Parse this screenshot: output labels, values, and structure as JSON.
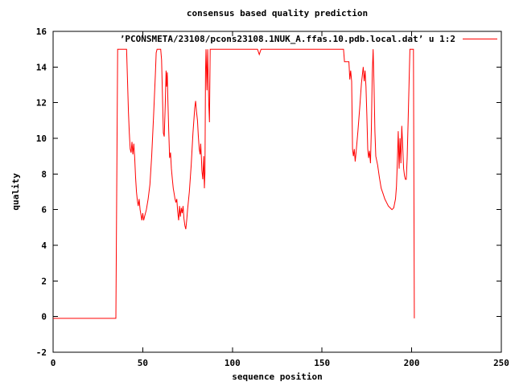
{
  "colors": {
    "background": "#ffffff",
    "axis": "#000000",
    "text": "#000000",
    "line": "#ff0000"
  },
  "chart_data": {
    "type": "line",
    "title": "consensus based quality prediction",
    "xlabel": "sequence position",
    "ylabel": "quality",
    "xlim": [
      0,
      250
    ],
    "ylim": [
      -2,
      16
    ],
    "x_ticks": [
      0,
      50,
      100,
      150,
      200,
      250
    ],
    "y_ticks": [
      -2,
      0,
      2,
      4,
      6,
      8,
      10,
      12,
      14,
      16
    ],
    "grid": false,
    "legend_position": "top-inside-right",
    "series": [
      {
        "name": "’PCONSMETA/23108/pcons23108.1NUK_A.ffas.10.pdb.local.dat’ u 1:2",
        "color": "#ff0000",
        "points": [
          [
            0,
            -0.1
          ],
          [
            35,
            -0.1
          ],
          [
            36,
            15
          ],
          [
            41,
            15
          ],
          [
            41.5,
            13.2
          ],
          [
            42,
            11.5
          ],
          [
            42.5,
            10.3
          ],
          [
            43,
            9.4
          ],
          [
            43.5,
            9.2
          ],
          [
            44,
            9.8
          ],
          [
            44.5,
            9.1
          ],
          [
            45,
            9.7
          ],
          [
            45.5,
            8.9
          ],
          [
            46,
            7.8
          ],
          [
            46.5,
            7.0
          ],
          [
            47,
            6.5
          ],
          [
            47.5,
            6.2
          ],
          [
            48,
            6.6
          ],
          [
            48.5,
            6.0
          ],
          [
            49,
            5.7
          ],
          [
            49.5,
            5.4
          ],
          [
            50,
            5.8
          ],
          [
            50.5,
            5.4
          ],
          [
            51,
            5.6
          ],
          [
            52,
            6.0
          ],
          [
            53,
            6.6
          ],
          [
            54,
            7.4
          ],
          [
            55,
            9.0
          ],
          [
            56,
            11.2
          ],
          [
            57,
            13.5
          ],
          [
            57.5,
            14.8
          ],
          [
            58,
            15
          ],
          [
            60,
            15
          ],
          [
            60.5,
            14.4
          ],
          [
            61,
            12.4
          ],
          [
            61.5,
            10.3
          ],
          [
            62,
            10.1
          ],
          [
            62.5,
            11.8
          ],
          [
            63,
            13.8
          ],
          [
            63.3,
            12.9
          ],
          [
            63.7,
            13.7
          ],
          [
            64,
            12.2
          ],
          [
            64.5,
            10.4
          ],
          [
            65,
            8.9
          ],
          [
            65.5,
            9.2
          ],
          [
            66,
            8.3
          ],
          [
            66.5,
            7.7
          ],
          [
            67,
            7.2
          ],
          [
            67.5,
            6.9
          ],
          [
            68,
            6.6
          ],
          [
            68.5,
            6.4
          ],
          [
            69,
            6.6
          ],
          [
            69.5,
            5.9
          ],
          [
            70,
            5.4
          ],
          [
            70.5,
            6.2
          ],
          [
            71,
            5.6
          ],
          [
            71.5,
            6.1
          ],
          [
            72,
            5.8
          ],
          [
            72.5,
            6.2
          ],
          [
            73,
            5.5
          ],
          [
            73.5,
            5.1
          ],
          [
            74,
            4.9
          ],
          [
            74.5,
            5.4
          ],
          [
            75,
            6.0
          ],
          [
            76,
            7.0
          ],
          [
            77,
            8.5
          ],
          [
            78,
            10.3
          ],
          [
            79,
            11.7
          ],
          [
            79.5,
            12.1
          ],
          [
            80,
            11.5
          ],
          [
            80.5,
            11.0
          ],
          [
            81,
            10.1
          ],
          [
            81.5,
            9.4
          ],
          [
            82,
            9.1
          ],
          [
            82.3,
            9.7
          ],
          [
            82.7,
            8.9
          ],
          [
            83,
            8.2
          ],
          [
            83.5,
            7.7
          ],
          [
            84,
            9.0
          ],
          [
            84.4,
            7.2
          ],
          [
            84.7,
            8.1
          ],
          [
            85,
            13.7
          ],
          [
            85.3,
            15
          ],
          [
            85.8,
            12.7
          ],
          [
            86.2,
            15
          ],
          [
            86.8,
            12.0
          ],
          [
            87.2,
            10.9
          ],
          [
            87.6,
            15
          ],
          [
            114,
            15
          ],
          [
            115,
            14.7
          ],
          [
            116,
            15
          ],
          [
            162,
            15
          ],
          [
            162.5,
            14.3
          ],
          [
            165,
            14.3
          ],
          [
            165.5,
            13.3
          ],
          [
            166,
            13.8
          ],
          [
            166.5,
            13.2
          ],
          [
            167,
            9.4
          ],
          [
            167.5,
            9.0
          ],
          [
            168,
            9.4
          ],
          [
            168.5,
            8.7
          ],
          [
            169,
            9.2
          ],
          [
            170,
            10.4
          ],
          [
            171,
            11.7
          ],
          [
            172,
            13.1
          ],
          [
            173,
            14.0
          ],
          [
            173.5,
            13.2
          ],
          [
            174,
            13.8
          ],
          [
            174.5,
            12.9
          ],
          [
            175,
            11.3
          ],
          [
            175.5,
            9.4
          ],
          [
            176,
            8.9
          ],
          [
            176.5,
            9.3
          ],
          [
            177,
            8.6
          ],
          [
            177.5,
            10.5
          ],
          [
            178,
            13.6
          ],
          [
            178.5,
            15
          ],
          [
            179,
            13.0
          ],
          [
            179.5,
            10.4
          ],
          [
            180,
            9.0
          ],
          [
            181,
            8.5
          ],
          [
            182,
            7.8
          ],
          [
            183,
            7.2
          ],
          [
            184,
            6.9
          ],
          [
            185,
            6.6
          ],
          [
            186,
            6.4
          ],
          [
            187,
            6.2
          ],
          [
            188,
            6.1
          ],
          [
            189,
            6.0
          ],
          [
            190,
            6.1
          ],
          [
            191,
            6.6
          ],
          [
            191.5,
            7.3
          ],
          [
            192,
            8.7
          ],
          [
            192.5,
            10.4
          ],
          [
            193,
            8.3
          ],
          [
            193.5,
            10.0
          ],
          [
            194,
            8.6
          ],
          [
            194.5,
            10.7
          ],
          [
            195,
            9.5
          ],
          [
            195.5,
            8.3
          ],
          [
            196,
            7.9
          ],
          [
            196.5,
            7.7
          ],
          [
            197,
            7.7
          ],
          [
            197.5,
            8.9
          ],
          [
            198,
            10.8
          ],
          [
            198.5,
            13.0
          ],
          [
            199,
            15
          ],
          [
            201,
            15
          ],
          [
            201.5,
            -0.1
          ]
        ]
      }
    ]
  }
}
